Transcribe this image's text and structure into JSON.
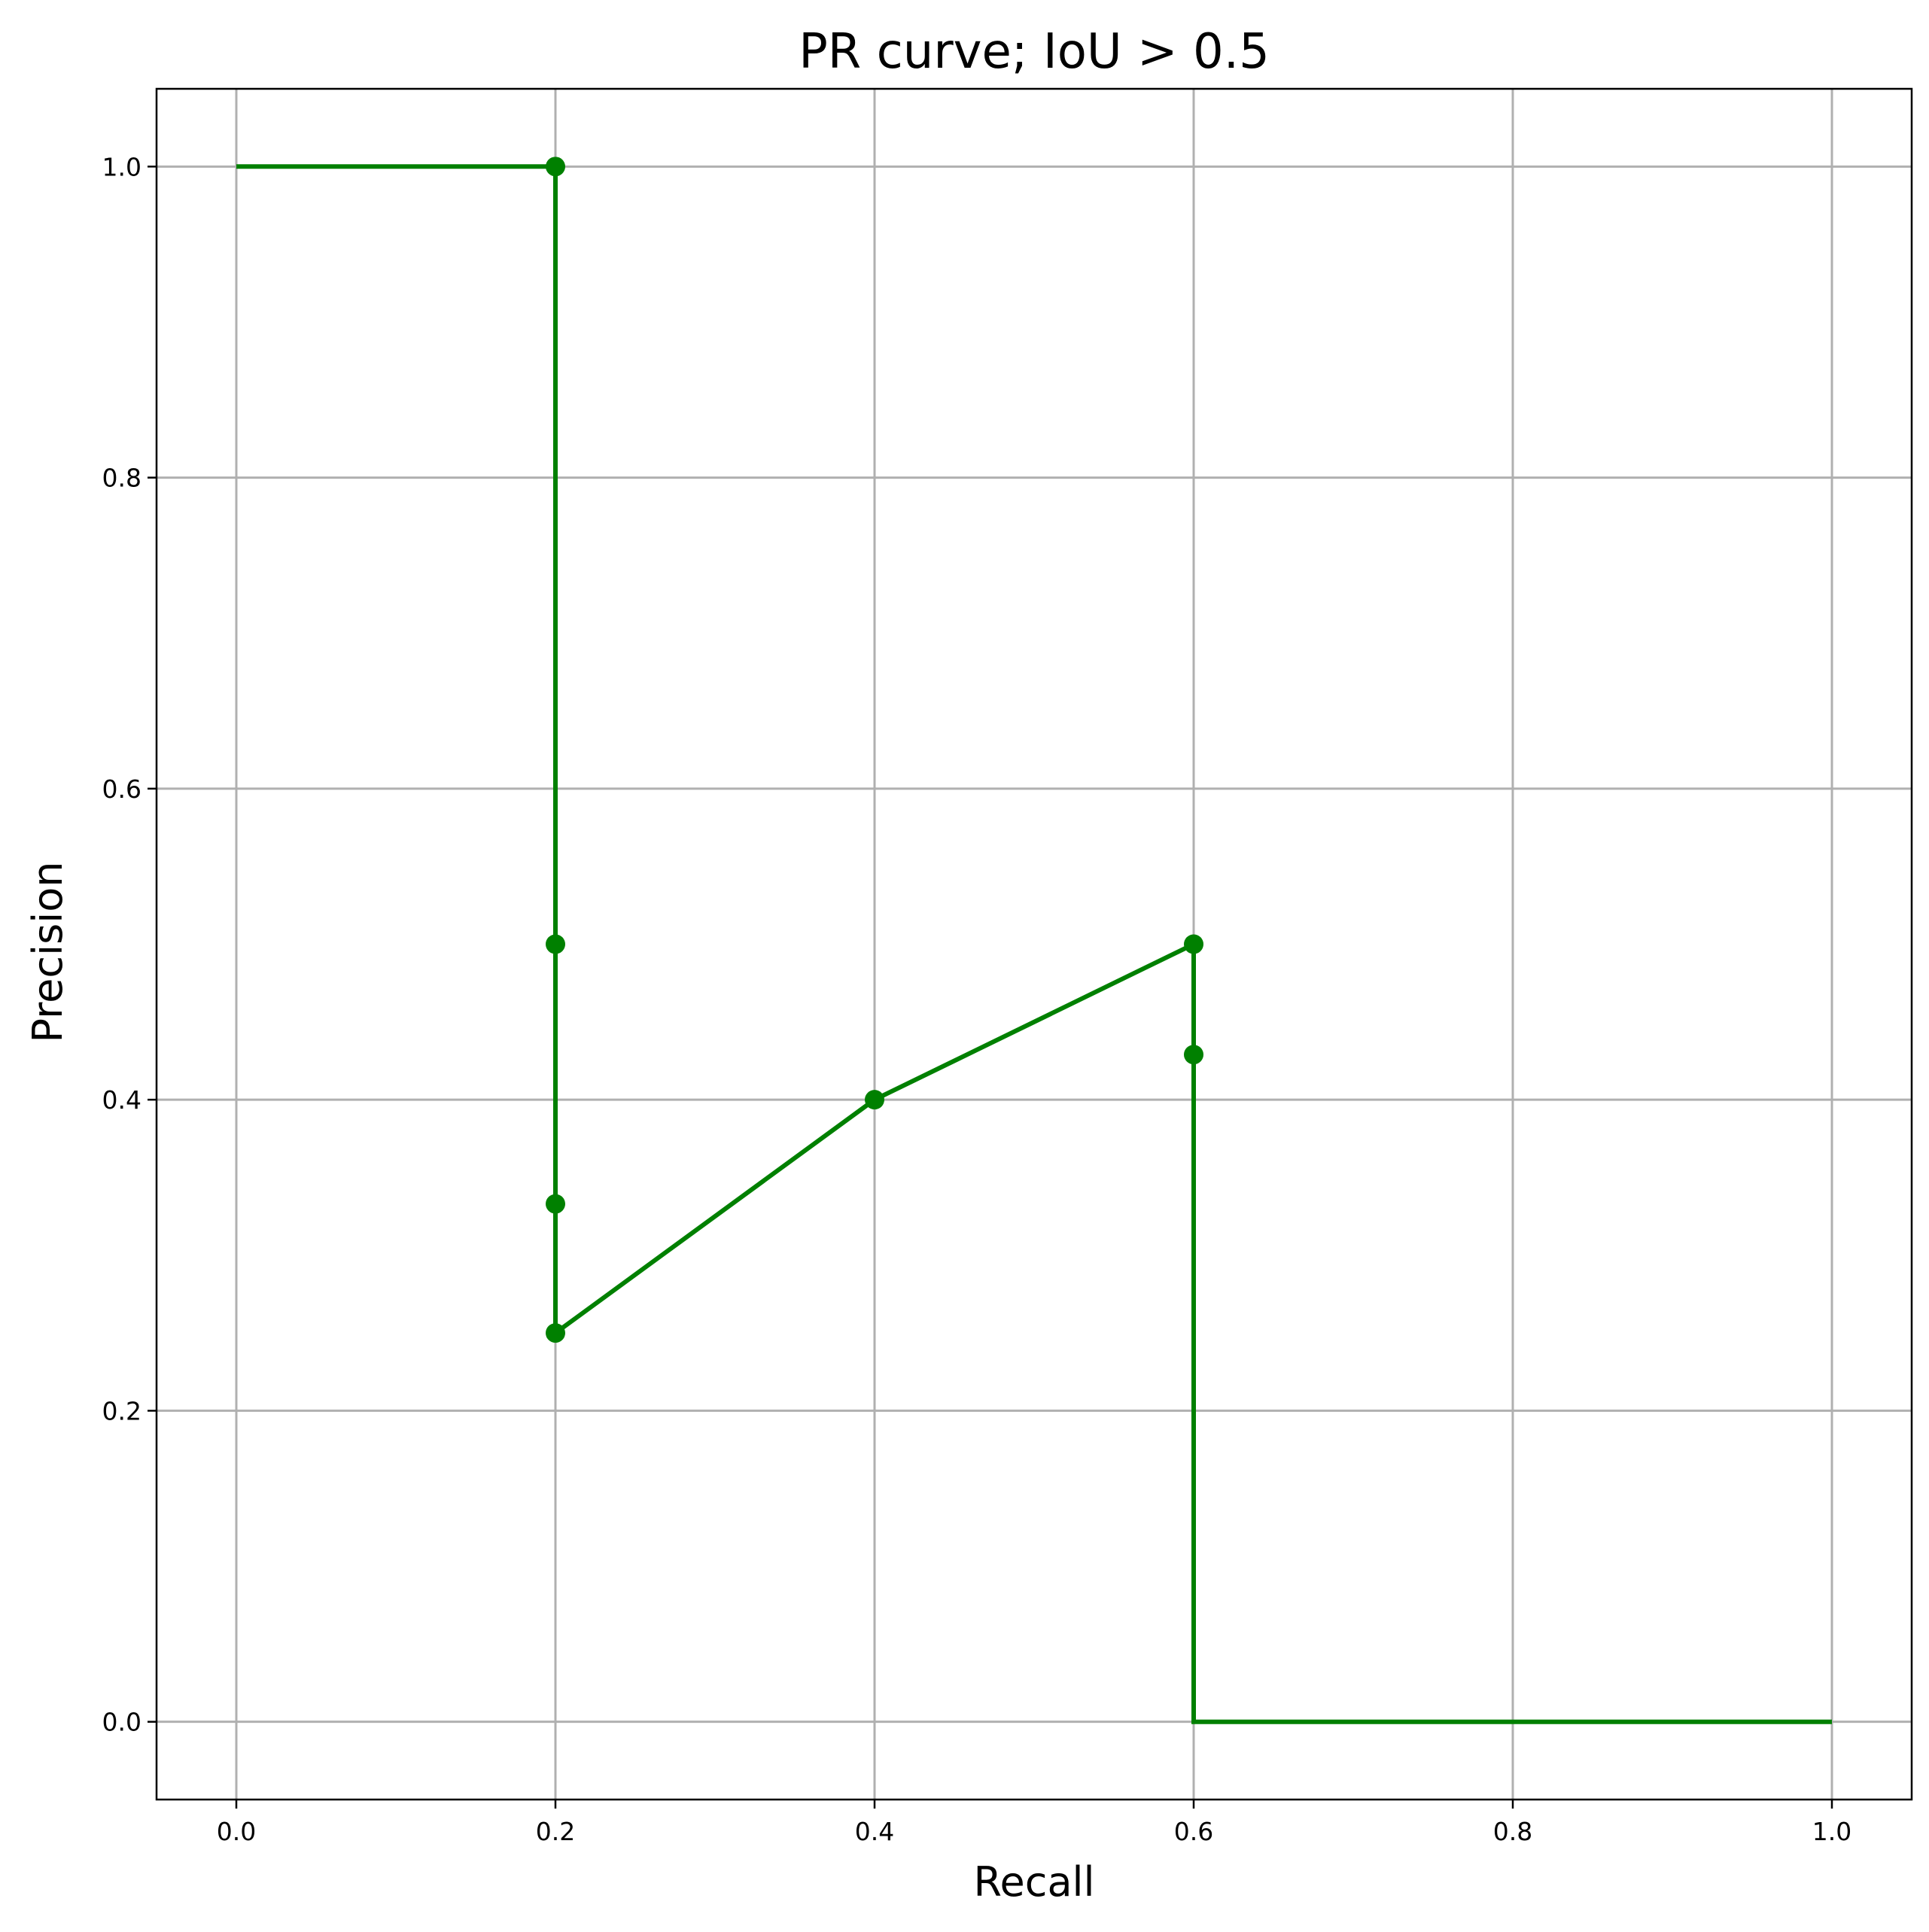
{
  "chart_data": {
    "type": "line",
    "title": "PR curve; IoU > 0.5",
    "xlabel": "Recall",
    "ylabel": "Precision",
    "xlim": [
      -0.05,
      1.05
    ],
    "ylim": [
      -0.05,
      1.05
    ],
    "xticks": [
      "0.0",
      "0.2",
      "0.4",
      "0.6",
      "0.8",
      "1.0"
    ],
    "yticks": [
      "0.0",
      "0.2",
      "0.4",
      "0.6",
      "0.8",
      "1.0"
    ],
    "grid": true,
    "legend": false,
    "series": [
      {
        "color": "#008000",
        "line": [
          [
            0.0,
            1.0
          ],
          [
            0.2,
            1.0
          ],
          [
            0.2,
            0.5
          ],
          [
            0.2,
            0.333
          ],
          [
            0.2,
            0.25
          ],
          [
            0.4,
            0.4
          ],
          [
            0.6,
            0.5
          ],
          [
            0.6,
            0.429
          ],
          [
            0.6,
            0.0
          ],
          [
            1.0,
            0.0
          ]
        ],
        "markers": [
          [
            0.2,
            1.0
          ],
          [
            0.2,
            0.5
          ],
          [
            0.2,
            0.333
          ],
          [
            0.2,
            0.25
          ],
          [
            0.4,
            0.4
          ],
          [
            0.6,
            0.5
          ],
          [
            0.6,
            0.429
          ]
        ]
      }
    ]
  }
}
